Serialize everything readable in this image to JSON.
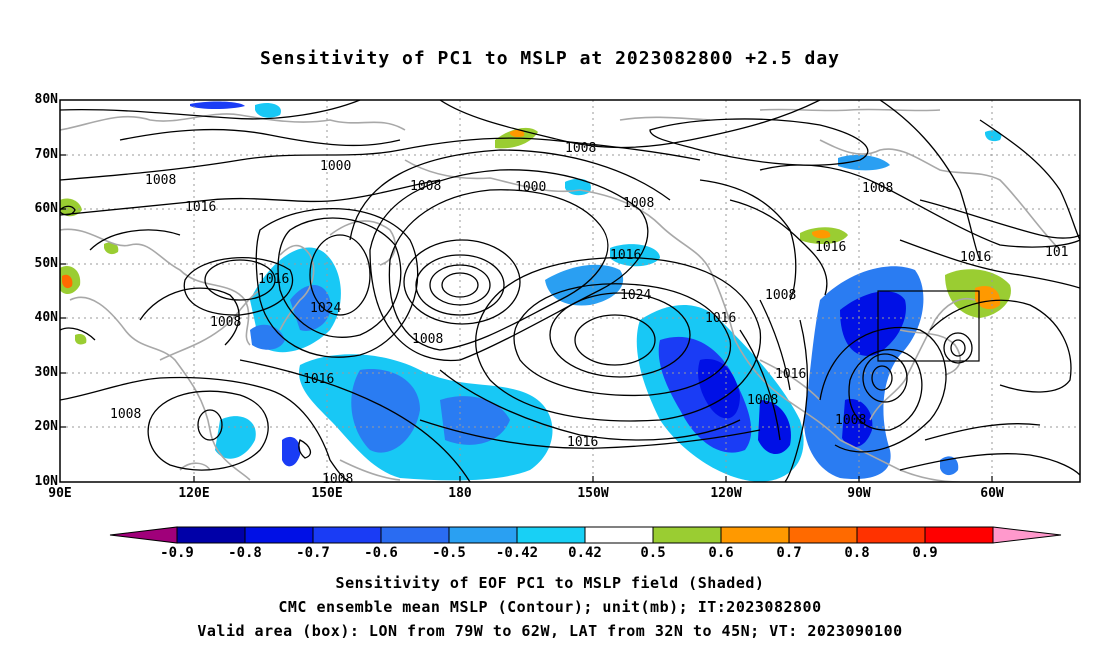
{
  "title": "Sensitivity of PC1 to MSLP at 2023082800 +2.5 day",
  "map": {
    "lat_labels": [
      "80N",
      "70N",
      "60N",
      "50N",
      "40N",
      "30N",
      "20N",
      "10N"
    ],
    "lon_labels": [
      "90E",
      "120E",
      "150E",
      "180",
      "150W",
      "120W",
      "90W",
      "60W"
    ],
    "contour_labels": [
      "1000",
      "1008",
      "1008",
      "1008",
      "1016",
      "1016",
      "1016",
      "1016",
      "1016",
      "1024",
      "1024",
      "1008",
      "1008",
      "1016",
      "1016",
      "1008",
      "1008",
      "1008",
      "1008",
      "1016",
      "1008",
      "1000",
      "1008",
      "1008",
      "1016",
      "1016",
      "1008",
      "101"
    ],
    "valid_box": {
      "lon_west": -79,
      "lon_east": -62,
      "lat_south": 32,
      "lat_north": 45
    }
  },
  "colorbar": {
    "labels": [
      "-0.9",
      "-0.8",
      "-0.7",
      "-0.6",
      "-0.5",
      "-0.42",
      "0.42",
      "0.5",
      "0.6",
      "0.7",
      "0.8",
      "0.9"
    ],
    "colors": [
      "#a0007a",
      "#0000a8",
      "#0010e6",
      "#1a3cf5",
      "#2a6cf2",
      "#2aa0f2",
      "#18d0f5",
      "#ffffff",
      "#9acd32",
      "#ff9900",
      "#ff6a00",
      "#ff3200",
      "#ff0000",
      "#ff99cc"
    ]
  },
  "captions": [
    "Sensitivity of EOF PC1 to MSLP field (Shaded)",
    "CMC ensemble mean MSLP (Contour); unit(mb); IT:2023082800",
    "Valid area (box): LON from 79W to 62W, LAT from 32N to 45N; VT: 2023090100"
  ]
}
